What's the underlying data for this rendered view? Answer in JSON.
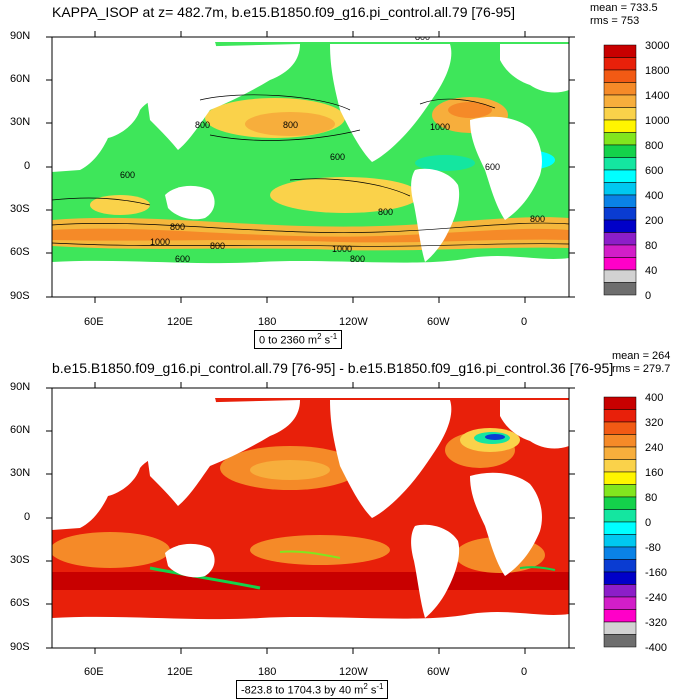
{
  "panels": [
    {
      "title": "KAPPA_ISOP at z= 482.7m, b.e15.B1850.f09_g16.pi_control.all.79 [76-95]",
      "stats": {
        "mean": "mean = 733.5",
        "rms": "rms = 753"
      },
      "range_prefix": "0 to 2360 m",
      "range_unit_exp": "2",
      "range_suffix": " s",
      "range_unit_exp2": "-1",
      "legend_labels": [
        "3000",
        "1800",
        "1400",
        "1000",
        "800",
        "600",
        "400",
        "200",
        "80",
        "40",
        "0"
      ],
      "legend_colors": [
        "#c80000",
        "#e8200a",
        "#f25a14",
        "#f58a28",
        "#f7ae3c",
        "#fad24a",
        "#fff500",
        "#82e61e",
        "#14d24b",
        "#14e6a0",
        "#00ffff",
        "#00c8f0",
        "#0a82e6",
        "#0a3cd2",
        "#0000c8",
        "#8c1ec8",
        "#d21ec8",
        "#ff00c8",
        "#d2d2d2",
        "#6e6e6e"
      ],
      "contour_labels": [
        "800",
        "800",
        "800",
        "800",
        "600",
        "600",
        "600",
        "800",
        "1000",
        "800",
        "1000",
        "600",
        "1000",
        "800",
        "800"
      ]
    },
    {
      "title": "b.e15.B1850.f09_g16.pi_control.all.79 [76-95] - b.e15.B1850.f09_g16.pi_control.36 [76-95]",
      "stats": {
        "mean": "mean = 264",
        "rms": "rms = 279.7"
      },
      "range_prefix": "-823.8 to 1704.3 by 40 m",
      "range_unit_exp": "2",
      "range_suffix": " s",
      "range_unit_exp2": "-1",
      "legend_labels": [
        "400",
        "320",
        "240",
        "160",
        "80",
        "0",
        "-80",
        "-160",
        "-240",
        "-320",
        "-400"
      ],
      "legend_colors": [
        "#c80000",
        "#e8200a",
        "#f25a14",
        "#f58a28",
        "#f7ae3c",
        "#fad24a",
        "#fff500",
        "#82e61e",
        "#14d24b",
        "#14e6a0",
        "#00ffff",
        "#00c8f0",
        "#0a82e6",
        "#0a3cd2",
        "#0000c8",
        "#8c1ec8",
        "#d21ec8",
        "#ff00c8",
        "#d2d2d2",
        "#6e6e6e"
      ]
    }
  ],
  "axes": {
    "lat_labels": [
      "90N",
      "60N",
      "30N",
      "0",
      "30S",
      "60S",
      "90S"
    ],
    "lon_labels": [
      "60E",
      "120E",
      "180",
      "120W",
      "60W",
      "0"
    ]
  }
}
